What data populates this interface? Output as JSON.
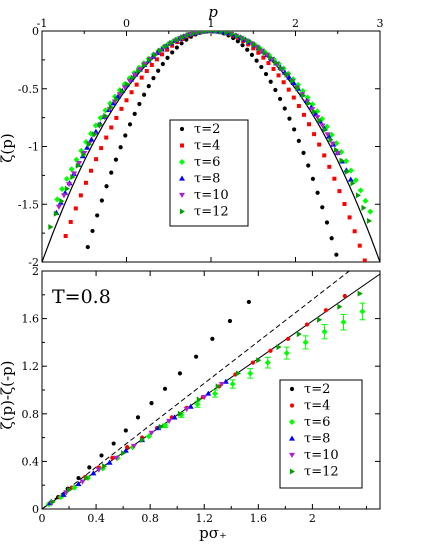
{
  "chart_data": [
    {
      "type": "scatter",
      "panel": "top",
      "xlabel": "p",
      "ylabel": "ζ(p)",
      "xlim": [
        -1,
        3
      ],
      "ylim": [
        -2,
        0
      ],
      "xticks": [
        -1,
        0,
        1,
        2,
        3
      ],
      "xtick_labels": [
        "-1",
        "0",
        "1",
        "2",
        "3"
      ],
      "yticks": [
        0,
        -0.5,
        -1,
        -1.5,
        -2
      ],
      "ytick_labels": [
        "0",
        "-0.5",
        "-1",
        "-1.5",
        "-2"
      ],
      "x_axis_position": "top",
      "grid": false,
      "legend_position": "center",
      "reference_curve": {
        "type": "parabola",
        "vertex_x": 1,
        "vertex_y": 0,
        "curvature": 0.5
      },
      "series": [
        {
          "name": "τ=2",
          "color": "#000000",
          "marker": "circle",
          "curvature": 0.88,
          "x_range": [
            -0.68,
            2.68
          ],
          "step": 0.0555
        },
        {
          "name": "τ=4",
          "color": "#ff0000",
          "marker": "square",
          "curvature": 0.6,
          "x_range": [
            -0.72,
            2.9
          ],
          "step": 0.06
        },
        {
          "name": "τ=6",
          "color": "#00ff00",
          "marker": "diamond",
          "curvature": 0.44,
          "x_range": [
            -0.82,
            2.9
          ],
          "step": 0.057
        },
        {
          "name": "τ=8",
          "color": "#0000ff",
          "marker": "triangle-up",
          "curvature": 0.47,
          "x_range": [
            -0.83,
            2.7
          ],
          "step": 0.052
        },
        {
          "name": "τ=10",
          "color": "#b020d0",
          "marker": "triangle-down",
          "curvature": 0.47,
          "x_range": [
            -0.8,
            2.55
          ],
          "step": 0.06
        },
        {
          "name": "τ=12",
          "color": "#00a000",
          "marker": "triangle-right",
          "curvature": 0.47,
          "x_range": [
            -0.9,
            2.9
          ],
          "step": 0.065
        }
      ]
    },
    {
      "type": "scatter",
      "panel": "bottom",
      "xlabel": "pσ₊",
      "ylabel": "ζ(p)-ζ(-p)",
      "xlim": [
        0,
        2.5
      ],
      "ylim": [
        0,
        2
      ],
      "xticks": [
        0,
        0.4,
        0.8,
        1.2,
        1.6,
        2
      ],
      "xtick_labels": [
        "0",
        "0.4",
        "0.8",
        "1.2",
        "1.6",
        "2"
      ],
      "yticks": [
        0,
        0.4,
        0.8,
        1.2,
        1.6,
        2
      ],
      "ytick_labels": [
        "0",
        "0.4",
        "0.8",
        "1.2",
        "1.6",
        "2"
      ],
      "annotation": "T=0.8",
      "grid": false,
      "legend_position": "bottom-right",
      "reference_lines": [
        {
          "style": "solid",
          "slope": 0.79
        },
        {
          "style": "dashed",
          "slope": 0.88
        }
      ],
      "series": [
        {
          "name": "τ=2",
          "color": "#000000",
          "marker": "circle",
          "x": [
            0.05,
            0.12,
            0.19,
            0.27,
            0.35,
            0.44,
            0.53,
            0.62,
            0.71,
            0.81,
            0.91,
            1.02,
            1.14,
            1.26,
            1.39,
            1.53
          ],
          "y": [
            0.04,
            0.1,
            0.17,
            0.26,
            0.35,
            0.45,
            0.55,
            0.66,
            0.77,
            0.89,
            1.01,
            1.14,
            1.28,
            1.43,
            1.58,
            1.74
          ]
        },
        {
          "name": "τ=4",
          "color": "#ff0000",
          "marker": "circle",
          "x": [
            0.05,
            0.13,
            0.22,
            0.32,
            0.42,
            0.52,
            0.63,
            0.74,
            0.85,
            0.96,
            1.07,
            1.19,
            1.31,
            1.43,
            1.56,
            1.69,
            1.82,
            1.96,
            2.1,
            2.24
          ],
          "y": [
            0.04,
            0.1,
            0.18,
            0.27,
            0.35,
            0.43,
            0.52,
            0.6,
            0.68,
            0.77,
            0.85,
            0.94,
            1.03,
            1.13,
            1.23,
            1.33,
            1.43,
            1.55,
            1.67,
            1.79
          ]
        },
        {
          "name": "τ=6",
          "color": "#00ff00",
          "marker": "diamond",
          "x": [
            0.05,
            0.14,
            0.24,
            0.34,
            0.45,
            0.56,
            0.67,
            0.79,
            0.91,
            1.03,
            1.15,
            1.28,
            1.41,
            1.54,
            1.67,
            1.81,
            1.95,
            2.09,
            2.23,
            2.37
          ],
          "y": [
            0.04,
            0.1,
            0.18,
            0.26,
            0.34,
            0.43,
            0.52,
            0.61,
            0.7,
            0.79,
            0.88,
            0.97,
            1.05,
            1.14,
            1.23,
            1.31,
            1.4,
            1.49,
            1.57,
            1.66
          ],
          "errors": [
            0,
            0,
            0,
            0,
            0,
            0,
            0,
            0,
            0.015,
            0.02,
            0.025,
            0.03,
            0.035,
            0.04,
            0.045,
            0.05,
            0.055,
            0.06,
            0.065,
            0.07
          ]
        },
        {
          "name": "τ=8",
          "color": "#0000ff",
          "marker": "triangle-up",
          "x": [
            0.06,
            0.16,
            0.27,
            0.38,
            0.5,
            0.62,
            0.74,
            0.86,
            0.98,
            1.1,
            1.23,
            1.36
          ],
          "y": [
            0.05,
            0.12,
            0.21,
            0.3,
            0.39,
            0.49,
            0.58,
            0.68,
            0.77,
            0.86,
            0.97,
            1.07
          ]
        },
        {
          "name": "τ=10",
          "color": "#b020d0",
          "marker": "triangle-down",
          "x": [
            0.07,
            0.18,
            0.3,
            0.42,
            0.55,
            0.68,
            0.81,
            0.94,
            1.07,
            1.2,
            1.33
          ],
          "y": [
            0.05,
            0.14,
            0.23,
            0.33,
            0.43,
            0.53,
            0.64,
            0.74,
            0.84,
            0.94,
            1.05
          ]
        },
        {
          "name": "τ=12",
          "color": "#00a000",
          "marker": "triangle-right",
          "x": [
            0.08,
            0.2,
            0.33,
            0.46,
            0.6,
            0.74,
            0.88,
            1.02,
            1.16,
            1.3,
            1.45,
            1.6,
            1.75,
            1.9,
            2.05,
            2.2,
            2.35
          ],
          "y": [
            0.06,
            0.16,
            0.26,
            0.36,
            0.47,
            0.58,
            0.69,
            0.8,
            0.92,
            1.03,
            1.14,
            1.25,
            1.36,
            1.47,
            1.59,
            1.7,
            1.81
          ]
        }
      ]
    }
  ]
}
